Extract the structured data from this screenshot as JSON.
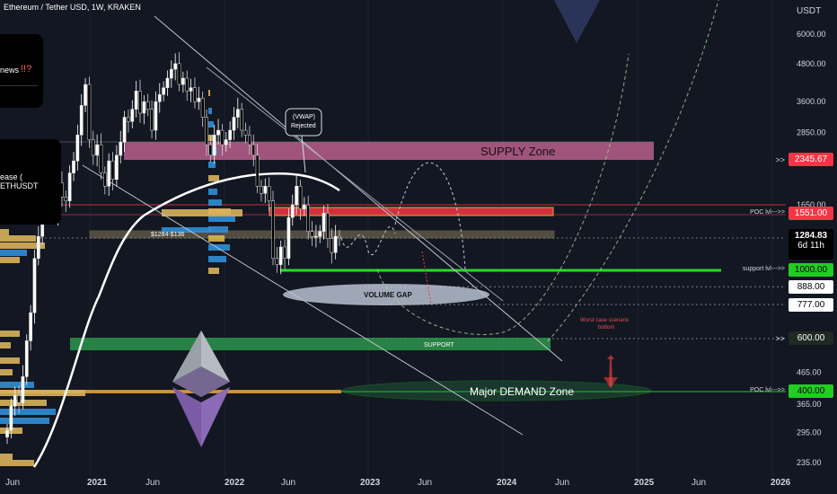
{
  "header": {
    "title": "Ethereum / Tether USD, 1W, KRAKEN"
  },
  "price_axis": {
    "unit": "USDT",
    "ticks": [
      "6000.00",
      "4800.00",
      "3600.00",
      "2850.00",
      "1650.00",
      "465.00",
      "365.00",
      "295.00",
      "235.00"
    ]
  },
  "time_axis": {
    "labels": [
      "Jun",
      "2021",
      "Jun",
      "2022",
      "Jun",
      "2023",
      "Jun",
      "2024",
      "Jun",
      "2025",
      "Jun",
      "2026"
    ]
  },
  "cards": [
    {
      "text": "news",
      "marks": "!!?"
    },
    {
      "text": "ease ( ETHUSDT"
    }
  ],
  "price_labels": [
    {
      "value": "2345.67",
      "prefix": ">>",
      "bg": "#f23645",
      "fg": "#ffffff"
    },
    {
      "value": "1551.00",
      "prefix": "POC lvl--->>",
      "bg": "#f23645",
      "fg": "#ffffff"
    },
    {
      "value": "1284.83",
      "sub": "6d 11h",
      "bg": "#000000",
      "fg": "#ffffff"
    },
    {
      "value": "1000.00",
      "prefix": "support lvl--->>",
      "bg": "#22cc22",
      "fg": "#000000"
    },
    {
      "value": "888.00",
      "bg": "#ffffff",
      "fg": "#000000"
    },
    {
      "value": "777.00",
      "bg": "#ffffff",
      "fg": "#000000"
    },
    {
      "value": "600.00",
      "prefix": ">>",
      "bg": "#1e2a22",
      "fg": "#ffffff"
    },
    {
      "value": "400.00",
      "prefix": "POC lvl--->>",
      "bg": "#22cc22",
      "fg": "#000000"
    }
  ],
  "annotations": {
    "supply": "SUPPLY   Zone",
    "vwap": "(VWAP)\nRejected",
    "range": "$1284-$136",
    "volume_gap": "VOLUME GAP",
    "support": "SUPPORT",
    "demand": "Major DEMAND Zone",
    "worst_case": "Worst case scenario\nbottom"
  },
  "colors": {
    "background": "#131722",
    "bull": "#ffffff",
    "bear": "#000000",
    "supply_zone": "#d16a9a",
    "support_zone": "#2e9e4f",
    "green_line": "#22dd22",
    "red_line": "#f23645",
    "profile_blue": "#2f8fd8",
    "profile_gold": "#d9b25b"
  },
  "icons": [
    "ethereum-logo-icon",
    "down-triangle-icon"
  ],
  "chart_data": {
    "type": "candlestick",
    "symbol": "ETHUSDT",
    "timeframe": "1W",
    "exchange": "KRAKEN",
    "y_scale": "log",
    "ylim": [
      230,
      7000
    ],
    "levels": [
      2345.67,
      1551.0,
      1284.83,
      1000.0,
      888.0,
      777.0,
      600.0,
      400.0
    ],
    "weekly_close_approx": [
      300,
      360,
      390,
      370,
      450,
      590,
      730,
      1100,
      1300,
      1650,
      1800,
      1600,
      1500,
      1950,
      1750,
      1700,
      2100,
      2300,
      2800,
      3500,
      4100,
      2700,
      2400,
      2600,
      2100,
      1900,
      2300,
      2000,
      2400,
      2650,
      3200,
      3100,
      3400,
      3900,
      3300,
      3600,
      3400,
      2900,
      3600,
      3800,
      4000,
      4300,
      4600,
      4800,
      4100,
      4300,
      3900,
      4000,
      3600,
      3700,
      3200,
      2600,
      2400,
      2800,
      2900,
      2600,
      2700,
      2900,
      3200,
      3400,
      2900,
      2800,
      2600,
      2400,
      1900,
      1800,
      1900,
      1700,
      1100,
      1050,
      1200,
      1100,
      1500,
      1650,
      1900,
      1600,
      1650,
      1350,
      1300,
      1300,
      1350,
      1550,
      1280,
      1150,
      1300,
      1284.83
    ]
  }
}
